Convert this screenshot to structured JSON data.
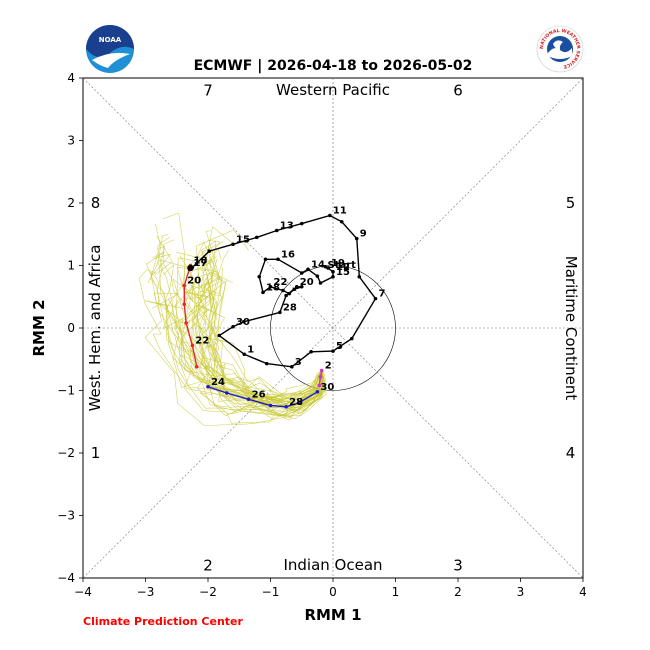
{
  "chart_data": {
    "type": "line",
    "title": "ECMWF | 2026-04-18 to 2026-05-02",
    "xlabel": "RMM 1",
    "ylabel": "RMM 2",
    "xlim": [
      -4,
      4
    ],
    "ylim": [
      -4,
      4
    ],
    "xticks": [
      "−4",
      "−3",
      "−2",
      "−1",
      "0",
      "1",
      "2",
      "3",
      "4"
    ],
    "yticks": [
      "−4",
      "−3",
      "−2",
      "−1",
      "0",
      "1",
      "2",
      "3",
      "4"
    ],
    "regions": {
      "top": "Western Pacific",
      "bottom": "Indian Ocean",
      "left": "West. Hem. and Africa",
      "right": "Maritime Continent"
    },
    "phases": [
      {
        "label": "1",
        "x": -3.8,
        "y": -2.0
      },
      {
        "label": "2",
        "x": -2.0,
        "y": -3.8
      },
      {
        "label": "3",
        "x": 2.0,
        "y": -3.8
      },
      {
        "label": "4",
        "x": 3.8,
        "y": -2.0
      },
      {
        "label": "5",
        "x": 3.8,
        "y": 2.0
      },
      {
        "label": "6",
        "x": 2.0,
        "y": 3.8
      },
      {
        "label": "7",
        "x": -2.0,
        "y": 3.8
      },
      {
        "label": "8",
        "x": -3.8,
        "y": 2.0
      }
    ],
    "start_label": "Start",
    "observed": [
      {
        "label": "",
        "x": -0.12,
        "y": 0.98
      },
      {
        "label": "19",
        "x": -0.08,
        "y": 0.96
      },
      {
        "label": "12",
        "x": 0.0,
        "y": 0.9
      },
      {
        "label": "15",
        "x": 0.0,
        "y": 0.82
      },
      {
        "label": "",
        "x": -0.2,
        "y": 0.72
      },
      {
        "label": "",
        "x": -0.25,
        "y": 0.83
      },
      {
        "label": "14",
        "x": -0.4,
        "y": 0.94
      },
      {
        "label": "",
        "x": -0.5,
        "y": 0.88
      },
      {
        "label": "16",
        "x": -0.88,
        "y": 1.1
      },
      {
        "label": "",
        "x": -1.08,
        "y": 1.1
      },
      {
        "label": "",
        "x": -1.18,
        "y": 0.82
      },
      {
        "label": "18",
        "x": -1.12,
        "y": 0.57
      },
      {
        "label": "22",
        "x": -1.0,
        "y": 0.66
      },
      {
        "label": "",
        "x": -0.8,
        "y": 0.6
      },
      {
        "label": "",
        "x": -0.7,
        "y": 0.55
      },
      {
        "label": "",
        "x": -0.62,
        "y": 0.62
      },
      {
        "label": "",
        "x": -0.5,
        "y": 0.66
      },
      {
        "label": "20",
        "x": -0.58,
        "y": 0.66
      },
      {
        "label": "",
        "x": -0.75,
        "y": 0.52
      },
      {
        "label": "28",
        "x": -0.85,
        "y": 0.25
      },
      {
        "label": "",
        "x": -1.43,
        "y": 0.1
      },
      {
        "label": "30",
        "x": -1.6,
        "y": 0.02
      },
      {
        "label": "",
        "x": -1.82,
        "y": -0.12
      },
      {
        "label": "1",
        "x": -1.42,
        "y": -0.42
      },
      {
        "label": "",
        "x": -1.06,
        "y": -0.57
      },
      {
        "label": "3",
        "x": -0.66,
        "y": -0.62
      },
      {
        "label": "",
        "x": -0.35,
        "y": -0.38
      },
      {
        "label": "5",
        "x": 0.0,
        "y": -0.37
      },
      {
        "label": "",
        "x": 0.3,
        "y": -0.17
      },
      {
        "label": "7",
        "x": 0.68,
        "y": 0.47
      },
      {
        "label": "",
        "x": 0.42,
        "y": 0.82
      },
      {
        "label": "9",
        "x": 0.38,
        "y": 1.43
      },
      {
        "label": "",
        "x": 0.14,
        "y": 1.7
      },
      {
        "label": "11",
        "x": -0.05,
        "y": 1.8
      },
      {
        "label": "",
        "x": -0.5,
        "y": 1.67
      },
      {
        "label": "13",
        "x": -0.9,
        "y": 1.56
      },
      {
        "label": "",
        "x": -1.22,
        "y": 1.45
      },
      {
        "label": "15",
        "x": -1.6,
        "y": 1.34
      },
      {
        "label": "",
        "x": -1.98,
        "y": 1.23
      },
      {
        "label": "",
        "x": -2.25,
        "y": 0.97
      },
      {
        "label": "17",
        "x": -2.28,
        "y": 0.96
      }
    ],
    "forecast_magenta": [
      {
        "label": "2",
        "x": -0.18,
        "y": -0.68
      },
      {
        "label": "",
        "x": -0.2,
        "y": -0.78
      },
      {
        "label": "",
        "x": -0.22,
        "y": -0.92
      }
    ],
    "forecast_blue": [
      {
        "label": "30",
        "x": -0.25,
        "y": -1.02
      },
      {
        "label": "",
        "x": -0.55,
        "y": -1.2
      },
      {
        "label": "28",
        "x": -0.75,
        "y": -1.26
      },
      {
        "label": "",
        "x": -1.0,
        "y": -1.24
      },
      {
        "label": "26",
        "x": -1.35,
        "y": -1.14
      },
      {
        "label": "",
        "x": -1.7,
        "y": -1.04
      },
      {
        "label": "24",
        "x": -2.0,
        "y": -0.94
      }
    ],
    "forecast_red": [
      {
        "label": "",
        "x": -2.18,
        "y": -0.62
      },
      {
        "label": "22",
        "x": -2.25,
        "y": -0.28
      },
      {
        "label": "",
        "x": -2.35,
        "y": 0.08
      },
      {
        "label": "",
        "x": -2.38,
        "y": 0.38
      },
      {
        "label": "20",
        "x": -2.38,
        "y": 0.68
      },
      {
        "label": "",
        "x": -2.3,
        "y": 0.94
      },
      {
        "label": "18",
        "x": -2.28,
        "y": 1.0
      }
    ],
    "ensemble_color": "#c8c832",
    "grid": "dashed-diagonals-and-axes",
    "unit_circle_radius": 1
  },
  "footer": {
    "credit": "Climate Prediction Center"
  },
  "logos": {
    "left": "NOAA",
    "right": "NATIONAL WEATHER SERVICE"
  }
}
